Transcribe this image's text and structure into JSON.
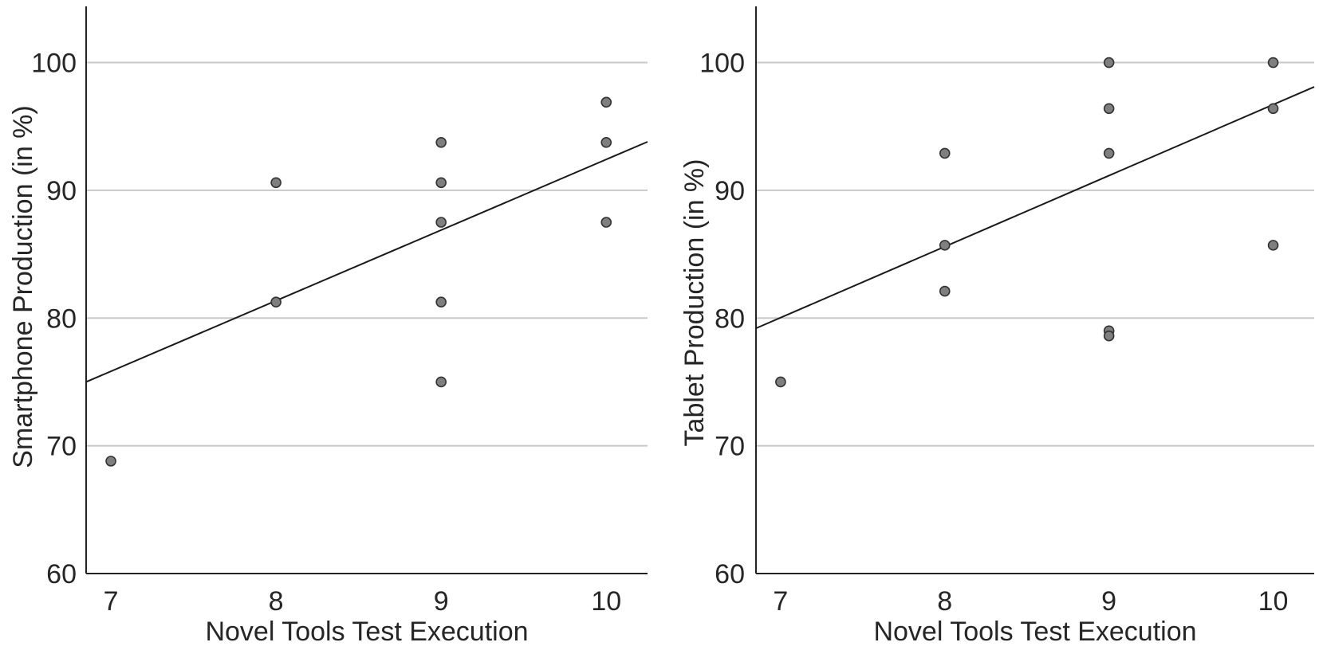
{
  "chart_data": [
    {
      "type": "scatter",
      "xlabel": "Novel Tools Test Execution",
      "ylabel": "Smartphone Production (in %)",
      "xlim": [
        6.85,
        10.25
      ],
      "ylim": [
        60,
        104.4
      ],
      "xticks": [
        7,
        8,
        9,
        10
      ],
      "yticks": [
        60,
        70,
        80,
        90,
        100
      ],
      "grid": "horizontal",
      "points": [
        {
          "x": 7,
          "y": 68.8
        },
        {
          "x": 8,
          "y": 90.6
        },
        {
          "x": 8,
          "y": 81.25
        },
        {
          "x": 9,
          "y": 93.75
        },
        {
          "x": 9,
          "y": 90.6
        },
        {
          "x": 9,
          "y": 87.5
        },
        {
          "x": 9,
          "y": 81.25
        },
        {
          "x": 9,
          "y": 75
        },
        {
          "x": 10,
          "y": 96.9
        },
        {
          "x": 10,
          "y": 93.75
        },
        {
          "x": 10,
          "y": 87.5
        }
      ],
      "fit_line": {
        "x1": 6.85,
        "y1": 75.0,
        "x2": 10.25,
        "y2": 93.8
      }
    },
    {
      "type": "scatter",
      "xlabel": "Novel Tools Test Execution",
      "ylabel": "Tablet Production (in %)",
      "xlim": [
        6.85,
        10.25
      ],
      "ylim": [
        60,
        104.4
      ],
      "xticks": [
        7,
        8,
        9,
        10
      ],
      "yticks": [
        60,
        70,
        80,
        90,
        100
      ],
      "grid": "horizontal",
      "points": [
        {
          "x": 7,
          "y": 75
        },
        {
          "x": 8,
          "y": 92.9
        },
        {
          "x": 8,
          "y": 85.7
        },
        {
          "x": 8,
          "y": 82.1
        },
        {
          "x": 9,
          "y": 100
        },
        {
          "x": 9,
          "y": 96.4
        },
        {
          "x": 9,
          "y": 92.9
        },
        {
          "x": 9,
          "y": 79.0
        },
        {
          "x": 9,
          "y": 78.6
        },
        {
          "x": 10,
          "y": 100
        },
        {
          "x": 10,
          "y": 96.4
        },
        {
          "x": 10,
          "y": 85.7
        }
      ],
      "fit_line": {
        "x1": 6.85,
        "y1": 79.2,
        "x2": 10.25,
        "y2": 98.1
      }
    }
  ]
}
